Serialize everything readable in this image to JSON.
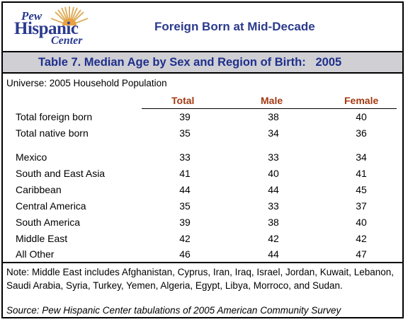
{
  "logo": {
    "line1": "Pew",
    "line2": "Hispanic",
    "line3": "Center"
  },
  "report_title": "Foreign Born at Mid-Decade",
  "table_title": "Table 7. Median Age by Sex and Region of Birth:   2005",
  "universe": "Universe: 2005 Household Population",
  "columns": [
    "Total",
    "Male",
    "Female"
  ],
  "rows": [
    {
      "label": "Total foreign born",
      "total": "39",
      "male": "38",
      "female": "40"
    },
    {
      "label": "Total native born",
      "total": "35",
      "male": "34",
      "female": "36"
    },
    {
      "label": "Mexico",
      "total": "33",
      "male": "33",
      "female": "34"
    },
    {
      "label": "South and East Asia",
      "total": "41",
      "male": "40",
      "female": "41"
    },
    {
      "label": "Caribbean",
      "total": "44",
      "male": "44",
      "female": "45"
    },
    {
      "label": "Central America",
      "total": "35",
      "male": "33",
      "female": "37"
    },
    {
      "label": "South America",
      "total": "39",
      "male": "38",
      "female": "40"
    },
    {
      "label": "Middle East",
      "total": "42",
      "male": "42",
      "female": "42"
    },
    {
      "label": "All Other",
      "total": "46",
      "male": "44",
      "female": "47"
    }
  ],
  "note": "Note:  Middle East includes Afghanistan, Cyprus, Iran, Iraq, Israel, Jordan, Kuwait, Lebanon, Saudi Arabia, Syria, Turkey, Yemen, Algeria, Egypt, Libya, Morroco, and Sudan.",
  "source": "Source: Pew Hispanic Center tabulations of 2005 American Community Survey",
  "colors": {
    "brand_blue": "#2b3a8c",
    "header_orange": "#a33a12",
    "title_bar": "#cfcfd4"
  }
}
